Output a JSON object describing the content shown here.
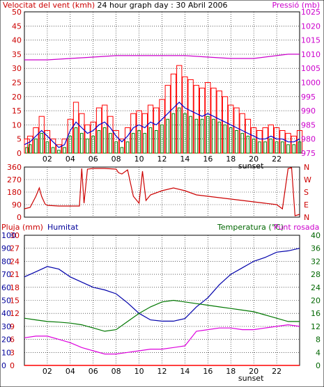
{
  "header": {
    "wind_title": "Velocitat del vent (kmh)",
    "graph_title": "24 hour graph day : 30 Abril 2006",
    "pressure_title": "Pressió (mb)"
  },
  "bottom_header": {
    "rain": "Pluja (mm)",
    "humidity": "Humitat",
    "temperature": "Temperatura (°C)",
    "dewpoint": "Punt rosada"
  },
  "colors": {
    "frame": "#000000",
    "grid": "#000000",
    "gust": "#ff0000",
    "wind": "#008000",
    "wind_avg": "#0000cc",
    "pressure": "#cc00cc",
    "direction": "#cc0000",
    "humidity": "#0000aa",
    "temperature": "#007700",
    "dewpoint": "#dd00dd",
    "rain": "#ff0000",
    "title_red": "#cc0000",
    "title_magenta": "#cc00cc",
    "title_blue": "#000099",
    "title_green": "#006600"
  },
  "chart_data": [
    {
      "type": "bar",
      "x_ticks": [
        "02",
        "04",
        "06",
        "08",
        "10",
        "12",
        "14",
        "16",
        "18",
        "20",
        "22"
      ],
      "x_ticks_hours": [
        2,
        4,
        6,
        8,
        10,
        12,
        14,
        16,
        18,
        20,
        22
      ],
      "x_range_hours": [
        0,
        24
      ],
      "sunset_label": "sunset",
      "sunset_hour": 20.0,
      "y_left_ticks": [
        0,
        5,
        10,
        15,
        20,
        25,
        30,
        35,
        40,
        45,
        50
      ],
      "y_left_range": [
        0,
        50
      ],
      "y_right_ticks": [
        975,
        980,
        985,
        990,
        995,
        1000,
        1005,
        1010,
        1015,
        1020,
        1025
      ],
      "y_right_range": [
        975,
        1025
      ],
      "series": [
        {
          "name": "Velocitat del vent (kmh)",
          "hours": [
            0,
            0.5,
            1,
            1.5,
            2,
            2.5,
            3,
            3.5,
            4,
            4.5,
            5,
            5.5,
            6,
            6.5,
            7,
            7.5,
            8,
            8.5,
            9,
            9.5,
            10,
            10.5,
            11,
            11.5,
            12,
            12.5,
            13,
            13.5,
            14,
            14.5,
            15,
            15.5,
            16,
            16.5,
            17,
            17.5,
            18,
            18.5,
            19,
            19.5,
            20,
            20.5,
            21,
            21.5,
            22,
            22.5,
            23,
            23.5,
            24
          ],
          "gust": [
            5,
            6,
            9,
            13,
            8,
            5,
            3,
            5,
            12,
            18,
            14,
            10,
            11,
            16,
            17,
            13,
            8,
            5,
            9,
            14,
            15,
            14,
            17,
            16,
            19,
            24,
            28,
            31,
            27,
            26,
            24,
            23,
            25,
            23,
            22,
            20,
            17,
            16,
            14,
            12,
            9,
            8,
            9,
            10,
            9,
            8,
            7,
            6,
            8
          ],
          "wind": [
            2,
            3,
            5,
            7,
            4,
            2,
            1,
            2,
            6,
            9,
            7,
            5,
            6,
            8,
            9,
            7,
            4,
            2,
            4,
            7,
            8,
            7,
            9,
            8,
            10,
            12,
            14,
            16,
            14,
            13,
            12,
            12,
            13,
            12,
            11,
            10,
            9,
            8,
            7,
            6,
            5,
            4,
            4,
            5,
            4,
            4,
            3,
            3,
            4
          ],
          "average": [
            3,
            4,
            6,
            8,
            6,
            4,
            2,
            3,
            8,
            11,
            9,
            7,
            8,
            10,
            11,
            9,
            6,
            4,
            6,
            9,
            10,
            9,
            11,
            10,
            12,
            14,
            16,
            18,
            16,
            15,
            14,
            13,
            14,
            13,
            12,
            11,
            10,
            9,
            8,
            7,
            6,
            5,
            5,
            6,
            5,
            5,
            4,
            4,
            5
          ]
        },
        {
          "name": "Pressió (mb)",
          "hours": [
            0,
            2,
            4,
            6,
            8,
            10,
            12,
            14,
            16,
            18,
            20,
            22,
            23,
            24
          ],
          "values": [
            1008,
            1008,
            1008.5,
            1009,
            1009.5,
            1009.5,
            1009.5,
            1009.5,
            1009,
            1008.5,
            1008.5,
            1009.5,
            1010,
            1010
          ]
        }
      ]
    },
    {
      "type": "line",
      "x_ticks_hours": [
        2,
        4,
        6,
        8,
        10,
        12,
        14,
        16,
        18,
        20,
        22
      ],
      "x_range_hours": [
        0,
        24
      ],
      "y_left_ticks": [
        0,
        90,
        180,
        270,
        360
      ],
      "y_left_range": [
        0,
        360
      ],
      "y_right_labels": [
        "N",
        "E",
        "S",
        "W",
        "N"
      ],
      "series": [
        {
          "name": "direction",
          "hours": [
            0,
            0.5,
            1,
            1.3,
            1.5,
            1.8,
            2,
            3,
            4,
            4.8,
            5,
            5.2,
            5.5,
            6,
            7,
            8,
            8.2,
            8.5,
            9,
            9.5,
            10,
            10.3,
            10.6,
            11,
            12,
            13,
            14,
            15,
            16,
            17,
            18,
            19,
            20,
            21,
            22,
            22.5,
            23,
            23.3,
            23.6,
            24
          ],
          "values": [
            60,
            70,
            150,
            210,
            150,
            95,
            85,
            80,
            80,
            80,
            350,
            100,
            345,
            350,
            350,
            345,
            320,
            310,
            340,
            150,
            100,
            330,
            120,
            160,
            190,
            210,
            190,
            160,
            150,
            140,
            130,
            120,
            110,
            100,
            90,
            60,
            350,
            355,
            10,
            20
          ]
        }
      ]
    },
    {
      "type": "line",
      "x_ticks": [
        "02",
        "04",
        "06",
        "08",
        "10",
        "12",
        "14",
        "16",
        "18",
        "20",
        "22"
      ],
      "x_ticks_hours": [
        2,
        4,
        6,
        8,
        10,
        12,
        14,
        16,
        18,
        20,
        22
      ],
      "x_range_hours": [
        0,
        24
      ],
      "sunset_label": "sunset",
      "sunset_hour": 20.0,
      "y_rain_ticks": [
        0,
        3,
        6,
        9,
        12,
        15,
        18,
        21,
        24,
        27,
        30
      ],
      "y_rain_range": [
        0,
        30
      ],
      "y_humidity_ticks": [
        0,
        10,
        20,
        30,
        40,
        50,
        60,
        70,
        80,
        90,
        100
      ],
      "y_humidity_range": [
        0,
        100
      ],
      "y_right_ticks": [
        0,
        4,
        8,
        12,
        16,
        20,
        24,
        28,
        32,
        36,
        40
      ],
      "y_right_range": [
        0,
        40
      ],
      "series": [
        {
          "name": "Humitat",
          "hours": [
            0,
            1,
            2,
            3,
            4,
            5,
            6,
            7,
            8,
            9,
            10,
            11,
            12,
            13,
            14,
            15,
            16,
            17,
            18,
            19,
            20,
            21,
            22,
            23,
            24
          ],
          "values": [
            68,
            72,
            76,
            74,
            68,
            64,
            60,
            58,
            55,
            48,
            40,
            35,
            34,
            34,
            36,
            45,
            52,
            62,
            70,
            75,
            80,
            83,
            87,
            88,
            90
          ]
        },
        {
          "name": "Temperatura (°C)",
          "hours": [
            0,
            1,
            2,
            3,
            4,
            5,
            6,
            7,
            8,
            9,
            10,
            11,
            12,
            13,
            14,
            15,
            16,
            17,
            18,
            19,
            20,
            21,
            22,
            23,
            24
          ],
          "values": [
            14.5,
            14,
            13.5,
            13.3,
            13,
            12.5,
            11.5,
            10.5,
            11,
            13.5,
            16,
            18,
            19.5,
            20,
            19.5,
            19,
            18.5,
            18,
            17.5,
            17,
            16.5,
            15.5,
            14.5,
            13.5,
            13.5
          ]
        },
        {
          "name": "Punt rosada",
          "hours": [
            0,
            1,
            2,
            3,
            4,
            5,
            6,
            7,
            8,
            9,
            10,
            11,
            12,
            13,
            14,
            15,
            16,
            17,
            18,
            19,
            20,
            21,
            22,
            23,
            24
          ],
          "values": [
            8.5,
            9,
            9,
            8,
            7,
            5.5,
            4.5,
            3.5,
            3.5,
            4,
            4.5,
            5,
            5,
            5.5,
            6,
            10.5,
            11,
            11.5,
            11.5,
            11,
            11,
            11.5,
            12,
            12.5,
            12
          ]
        },
        {
          "name": "Pluja (mm)",
          "hours": [
            0,
            24
          ],
          "values": [
            0,
            0
          ]
        }
      ]
    }
  ]
}
